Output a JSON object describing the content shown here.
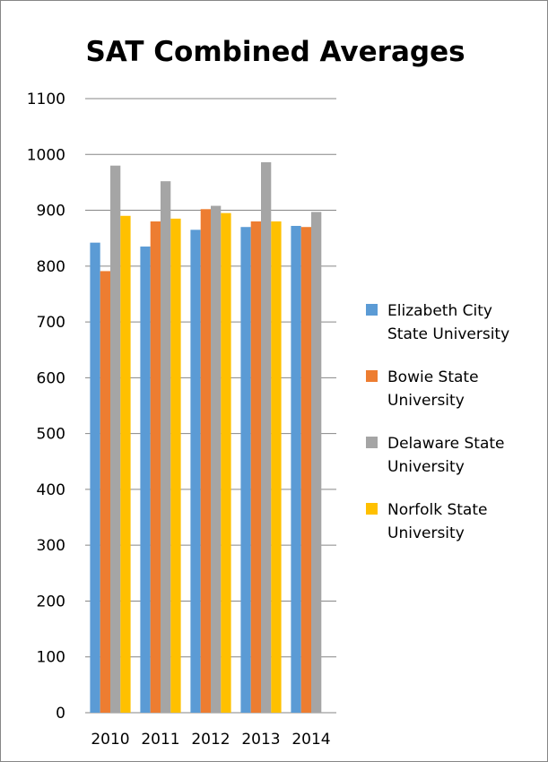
{
  "chart_data": {
    "type": "bar",
    "title": "SAT Combined Averages",
    "xlabel": "",
    "ylabel": "",
    "categories": [
      "2010",
      "2011",
      "2012",
      "2013",
      "2014"
    ],
    "ylim": [
      0,
      1100
    ],
    "yticks": [
      0,
      100,
      200,
      300,
      400,
      500,
      600,
      700,
      800,
      900,
      1000,
      1100
    ],
    "grid": true,
    "legend_position": "right",
    "series": [
      {
        "name": "Elizabeth City State University",
        "legend_lines": [
          "Elizabeth City",
          "State University"
        ],
        "color": "#5b9bd5",
        "values": [
          842,
          835,
          865,
          870,
          872
        ]
      },
      {
        "name": "Bowie State University",
        "legend_lines": [
          "Bowie State",
          "University"
        ],
        "color": "#ed7d31",
        "values": [
          791,
          880,
          902,
          880,
          870
        ]
      },
      {
        "name": "Delaware State University",
        "legend_lines": [
          "Delaware State",
          "University"
        ],
        "color": "#a5a5a5",
        "values": [
          980,
          952,
          908,
          986,
          897
        ]
      },
      {
        "name": "Norfolk State University",
        "legend_lines": [
          "Norfolk State",
          "University"
        ],
        "color": "#ffc000",
        "values": [
          890,
          885,
          895,
          880,
          null
        ]
      }
    ]
  }
}
